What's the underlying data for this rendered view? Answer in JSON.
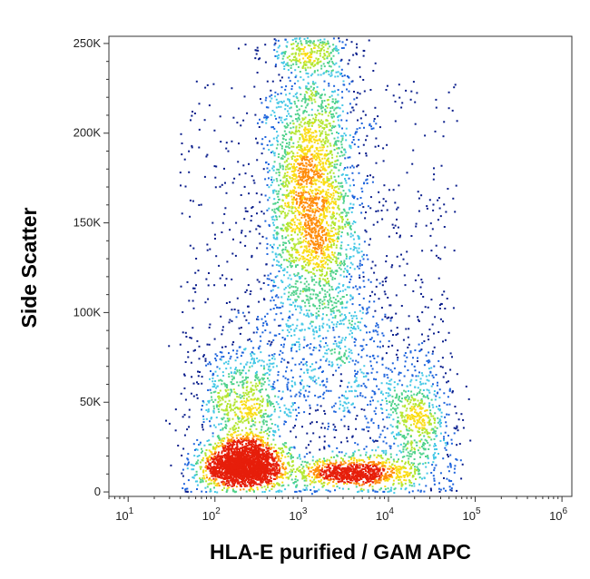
{
  "chart_data": {
    "type": "scatter",
    "subtype": "flow-cytometry-density-dot-plot",
    "title": "",
    "xlabel": "HLA-E purified / GAM APC",
    "ylabel": "Side Scatter",
    "x_scale": "log",
    "x_ticks": [
      {
        "value": 10,
        "base": "10",
        "exp": "1"
      },
      {
        "value": 100,
        "base": "10",
        "exp": "2"
      },
      {
        "value": 1000,
        "base": "10",
        "exp": "3"
      },
      {
        "value": 10000,
        "base": "10",
        "exp": "4"
      },
      {
        "value": 100000,
        "base": "10",
        "exp": "5"
      },
      {
        "value": 1000000,
        "base": "10",
        "exp": "6"
      }
    ],
    "xlim": [
      6,
      1300000
    ],
    "y_ticks": [
      {
        "value": 0,
        "label": "0"
      },
      {
        "value": 50000,
        "label": "50K"
      },
      {
        "value": 100000,
        "label": "100K"
      },
      {
        "value": 150000,
        "label": "150K"
      },
      {
        "value": 200000,
        "label": "200K"
      },
      {
        "value": 250000,
        "label": "250K"
      }
    ],
    "ylim": [
      -2500,
      254000
    ],
    "grid": false,
    "color_scale": [
      "#0a1e8c",
      "#1e64dc",
      "#46c8e6",
      "#50d28c",
      "#b4e632",
      "#fadc14",
      "#ff8c0a",
      "#e61e0a"
    ],
    "populations": [
      {
        "x": 220,
        "y": 10000,
        "count": 2400
      },
      {
        "x": 1300,
        "y": 165000,
        "count": 2600
      },
      {
        "x": 220,
        "y": 40000,
        "count": 650
      },
      {
        "x": 4000,
        "y": 8000,
        "count": 850
      },
      {
        "x": 22000,
        "y": 40000,
        "count": 550
      },
      {
        "x": 3000,
        "y": 80000,
        "count": 600
      },
      {
        "x": 1200,
        "y": 245000,
        "count": 300
      }
    ]
  }
}
